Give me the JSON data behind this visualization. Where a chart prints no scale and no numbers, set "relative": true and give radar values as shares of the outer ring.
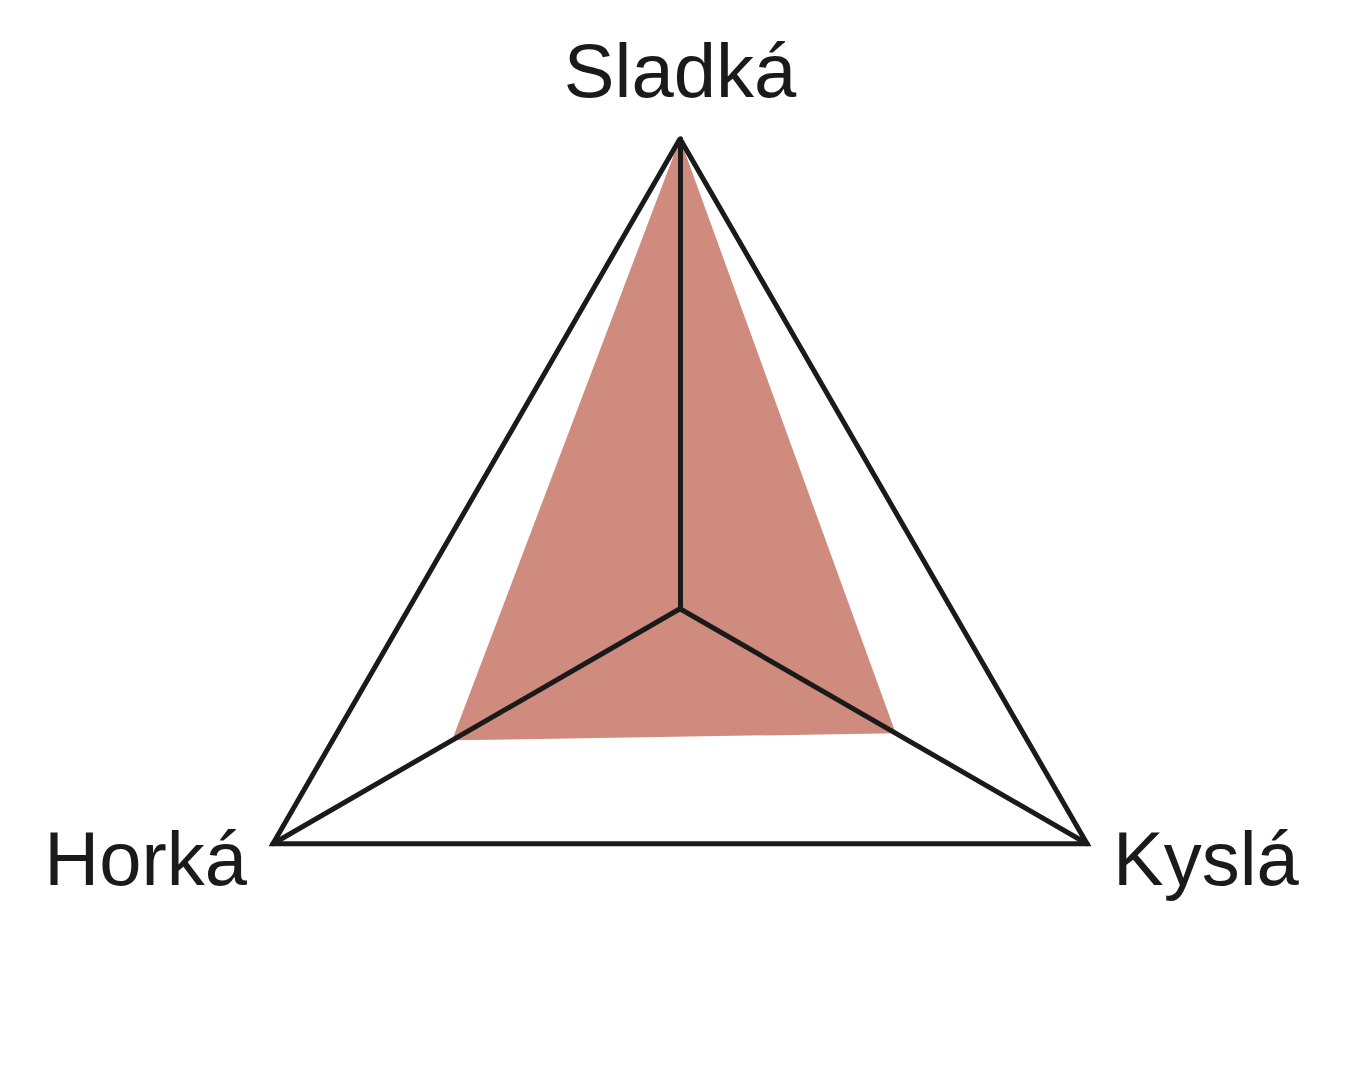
{
  "chart_data": {
    "type": "radar",
    "relative": true,
    "categories": [
      "Sladká",
      "Kyslá",
      "Horká"
    ],
    "series": [
      {
        "color": "#cf8b7e",
        "values": [
          1,
          0.53,
          0.56
        ]
      }
    ],
    "grid": true,
    "marker": "none"
  }
}
